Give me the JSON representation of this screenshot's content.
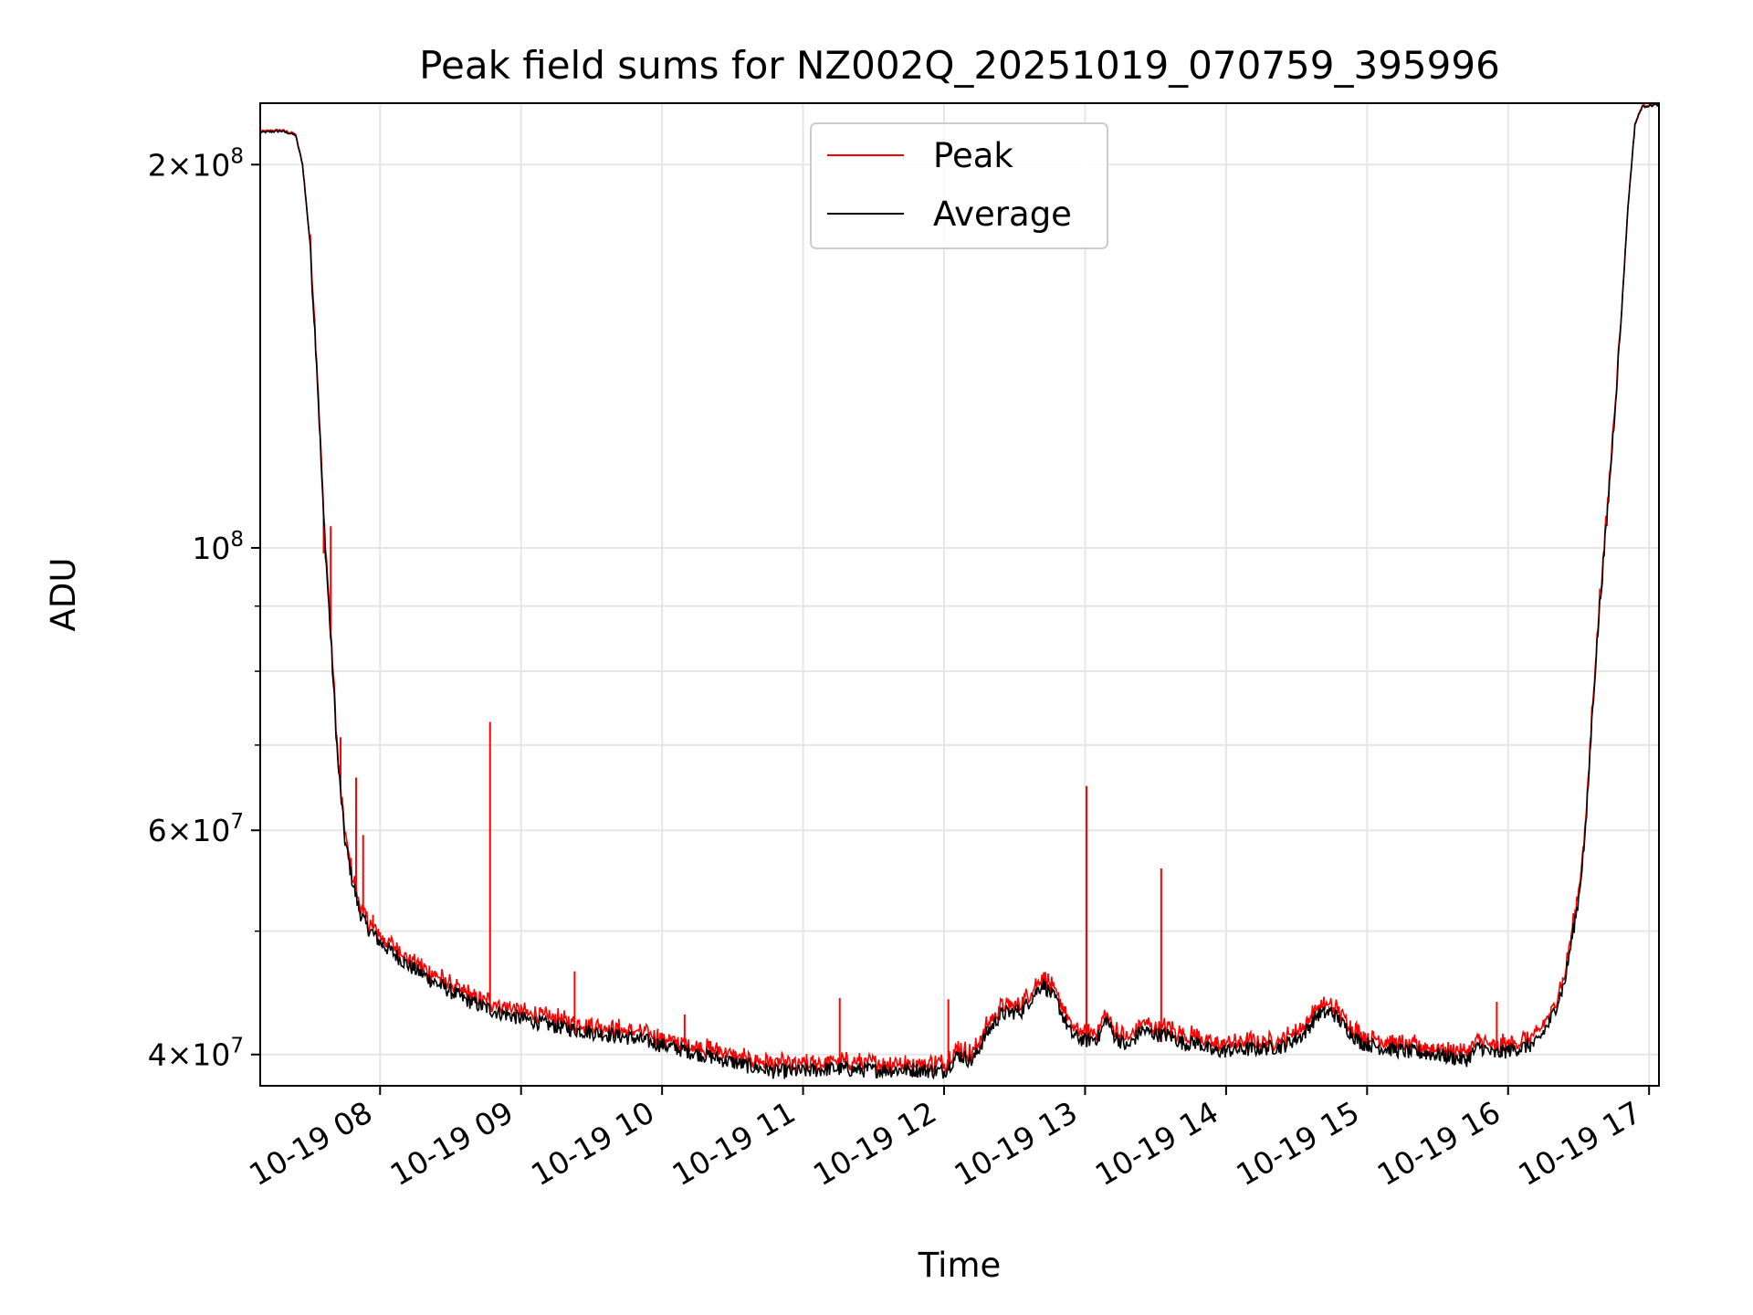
{
  "chart_data": {
    "type": "line",
    "title": "Peak field sums for NZ002Q_20251019_070759_395996",
    "xlabel": "Time",
    "ylabel": "ADU",
    "yscale": "log",
    "xlim_hours": [
      7.15,
      17.07
    ],
    "ylim": [
      37800000,
      223500000
    ],
    "grid": true,
    "legend_position": "top-center",
    "x_ticks": [
      {
        "value": 8,
        "label": "10-19 08"
      },
      {
        "value": 9,
        "label": "10-19 09"
      },
      {
        "value": 10,
        "label": "10-19 10"
      },
      {
        "value": 11,
        "label": "10-19 11"
      },
      {
        "value": 12,
        "label": "10-19 12"
      },
      {
        "value": 13,
        "label": "10-19 13"
      },
      {
        "value": 14,
        "label": "10-19 14"
      },
      {
        "value": 15,
        "label": "10-19 15"
      },
      {
        "value": 16,
        "label": "10-19 16"
      },
      {
        "value": 17,
        "label": "10-19 17"
      }
    ],
    "y_major_ticks": [
      {
        "value": 40000000,
        "mantissa": "4",
        "exponent": "7"
      },
      {
        "value": 60000000,
        "mantissa": "6",
        "exponent": "7"
      },
      {
        "value": 100000000,
        "mantissa": "",
        "exponent": "8"
      },
      {
        "value": 200000000,
        "mantissa": "2",
        "exponent": "8"
      }
    ],
    "y_minor_ticks": [
      50000000,
      70000000,
      80000000,
      90000000
    ],
    "series": [
      {
        "name": "Average",
        "color": "#000000"
      },
      {
        "name": "Peak",
        "color": "#ff0000"
      }
    ],
    "average_series_points": [
      [
        7.15,
        212000000
      ],
      [
        7.3,
        212500000
      ],
      [
        7.4,
        211000000
      ],
      [
        7.45,
        200000000
      ],
      [
        7.5,
        175000000
      ],
      [
        7.55,
        140000000
      ],
      [
        7.6,
        105000000
      ],
      [
        7.65,
        85000000
      ],
      [
        7.7,
        68000000
      ],
      [
        7.75,
        59000000
      ],
      [
        7.8,
        55000000
      ],
      [
        7.85,
        52000000
      ],
      [
        7.9,
        50500000
      ],
      [
        8.0,
        49000000
      ],
      [
        8.2,
        47000000
      ],
      [
        8.4,
        45500000
      ],
      [
        8.6,
        44200000
      ],
      [
        8.8,
        43300000
      ],
      [
        9.0,
        42700000
      ],
      [
        9.2,
        42200000
      ],
      [
        9.4,
        41800000
      ],
      [
        9.6,
        41500000
      ],
      [
        9.8,
        41200000
      ],
      [
        10.0,
        40700000
      ],
      [
        10.2,
        40200000
      ],
      [
        10.4,
        39700000
      ],
      [
        10.6,
        39200000
      ],
      [
        10.8,
        38800000
      ],
      [
        11.0,
        38800000
      ],
      [
        11.2,
        39000000
      ],
      [
        11.4,
        38900000
      ],
      [
        11.6,
        38900000
      ],
      [
        11.8,
        38900000
      ],
      [
        12.0,
        38800000
      ],
      [
        12.1,
        40000000
      ],
      [
        12.2,
        39500000
      ],
      [
        12.3,
        41500000
      ],
      [
        12.4,
        43000000
      ],
      [
        12.5,
        43200000
      ],
      [
        12.55,
        43300000
      ],
      [
        12.6,
        44000000
      ],
      [
        12.7,
        45500000
      ],
      [
        12.8,
        44000000
      ],
      [
        12.9,
        41500000
      ],
      [
        13.0,
        41000000
      ],
      [
        13.1,
        41300000
      ],
      [
        13.15,
        42700000
      ],
      [
        13.2,
        41500000
      ],
      [
        13.3,
        40500000
      ],
      [
        13.4,
        41800000
      ],
      [
        13.5,
        41500000
      ],
      [
        13.6,
        41400000
      ],
      [
        13.7,
        40800000
      ],
      [
        13.8,
        40900000
      ],
      [
        13.9,
        40200000
      ],
      [
        14.0,
        40300000
      ],
      [
        14.2,
        40400000
      ],
      [
        14.4,
        40600000
      ],
      [
        14.55,
        41500000
      ],
      [
        14.65,
        43000000
      ],
      [
        14.75,
        43200000
      ],
      [
        14.85,
        42000000
      ],
      [
        14.95,
        40900000
      ],
      [
        15.1,
        40500000
      ],
      [
        15.3,
        40200000
      ],
      [
        15.5,
        40000000
      ],
      [
        15.7,
        39600000
      ],
      [
        15.8,
        40600000
      ],
      [
        15.9,
        40000000
      ],
      [
        16.0,
        40300000
      ],
      [
        16.1,
        40500000
      ],
      [
        16.2,
        40800000
      ],
      [
        16.3,
        42500000
      ],
      [
        16.4,
        45500000
      ],
      [
        16.5,
        53000000
      ],
      [
        16.55,
        60000000
      ],
      [
        16.6,
        75000000
      ],
      [
        16.65,
        90000000
      ],
      [
        16.7,
        105000000
      ],
      [
        16.75,
        125000000
      ],
      [
        16.8,
        150000000
      ],
      [
        16.85,
        185000000
      ],
      [
        16.9,
        215000000
      ],
      [
        16.95,
        222000000
      ],
      [
        17.07,
        223000000
      ]
    ],
    "peak_spikes": [
      [
        7.6,
        99000000
      ],
      [
        7.65,
        104000000
      ],
      [
        7.72,
        71000000
      ],
      [
        7.83,
        66000000
      ],
      [
        7.88,
        59500000
      ],
      [
        7.95,
        51500000
      ],
      [
        8.78,
        73000000
      ],
      [
        9.38,
        46500000
      ],
      [
        10.16,
        43000000
      ],
      [
        11.26,
        44300000
      ],
      [
        12.03,
        44200000
      ],
      [
        13.01,
        65000000
      ],
      [
        13.54,
        56000000
      ],
      [
        15.92,
        44000000
      ],
      [
        16.7,
        104000000
      ]
    ]
  }
}
